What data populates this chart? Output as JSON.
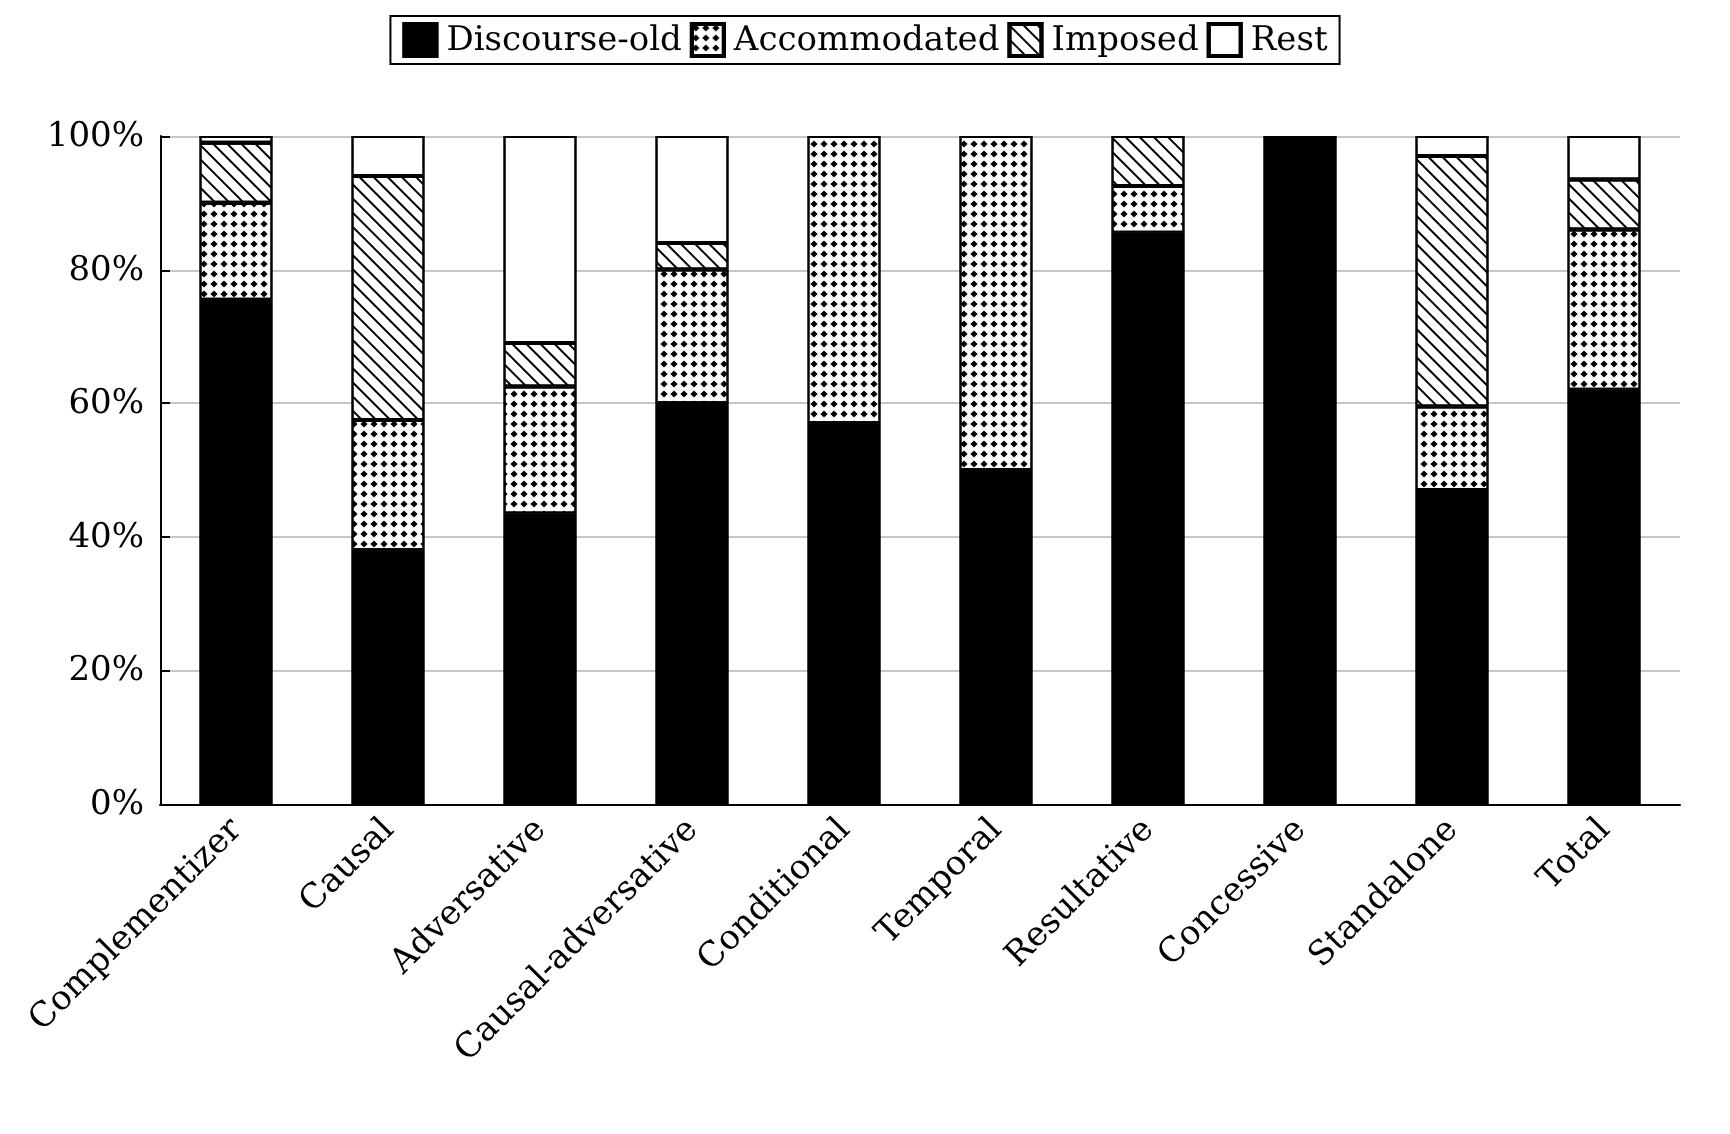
{
  "chart_data": {
    "type": "bar",
    "stacked": true,
    "categories": [
      "Complementizer",
      "Causal",
      "Adversative",
      "Causal-adversative",
      "Conditional",
      "Temporal",
      "Resultative",
      "Concessive",
      "Standalone",
      "Total"
    ],
    "series": [
      {
        "name": "Discourse-old",
        "color": "#000000",
        "values": [
          75.5,
          38,
          43.5,
          60,
          57,
          50,
          85.5,
          100,
          47,
          62
        ]
      },
      {
        "name": "Accommodated",
        "color": "#ffffff",
        "values": [
          14.5,
          19.5,
          19,
          20,
          43,
          50,
          7,
          0,
          12.5,
          24
        ]
      },
      {
        "name": "Imposed",
        "color": "#ffffff",
        "values": [
          9,
          36.5,
          6.5,
          4,
          0,
          0,
          7.5,
          0,
          37.5,
          7.5
        ]
      },
      {
        "name": "Rest",
        "color": "#ffffff",
        "values": [
          1,
          6,
          31,
          16,
          0,
          0,
          0,
          0,
          3,
          6.5
        ]
      }
    ],
    "ylim": [
      0,
      100
    ],
    "yticks": [
      {
        "value": 0,
        "label": "0%"
      },
      {
        "value": 20,
        "label": "20%"
      },
      {
        "value": 40,
        "label": "40%"
      },
      {
        "value": 60,
        "label": "60%"
      },
      {
        "value": 80,
        "label": "80%"
      },
      {
        "value": 100,
        "label": "100%"
      }
    ],
    "grid": "y",
    "legend": "top"
  }
}
